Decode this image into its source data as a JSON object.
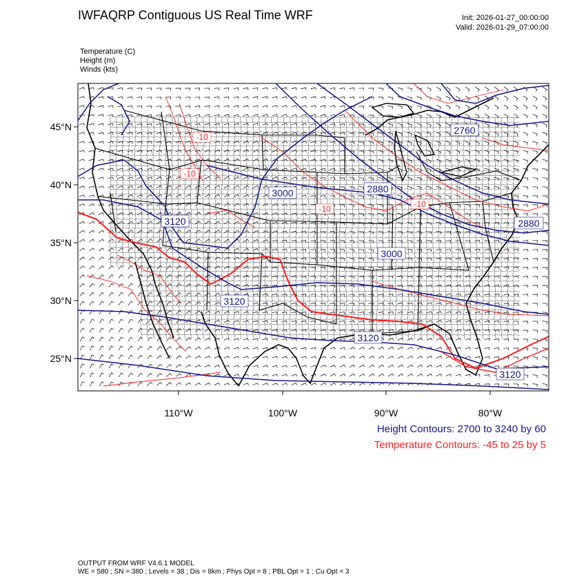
{
  "header": {
    "title": "IWFAQRP Contiguous US Real Time WRF",
    "init": "Init: 2026-01-27_00:00:00",
    "valid": "Valid: 2026-01-29_07:00:00"
  },
  "fields": [
    "Temperature   (C)",
    "Height   (m)",
    "Winds   (kts)"
  ],
  "axes": {
    "lat_labels": [
      "45°N",
      "40°N",
      "35°N",
      "30°N",
      "25°N"
    ],
    "lon_labels": [
      "110°W",
      "100°W",
      "90°W",
      "80°W"
    ]
  },
  "contour_labels": {
    "height": [
      "2760",
      "3000",
      "2880",
      "3120",
      "2880",
      "3000",
      "3120",
      "3120",
      "3120"
    ],
    "temperature": [
      "-10",
      "-10",
      "-10",
      "-10"
    ]
  },
  "legend": {
    "height": "Height Contours: 2700 to 3240 by 60",
    "temperature": "Temperature Contours: -45 to 25 by 5"
  },
  "footer": {
    "line1": "OUTPUT FROM WRF V4.6.1 MODEL",
    "line2": "WE = 580 ; SN = 380 ; Levels = 38 ; Dis = 8km ; Phys Opt = 8 ; PBL Opt = 1 ; Cu Opt = 3"
  },
  "colors": {
    "height": "#14148c",
    "temperature": "#ff1a1a",
    "border": "#000000"
  }
}
